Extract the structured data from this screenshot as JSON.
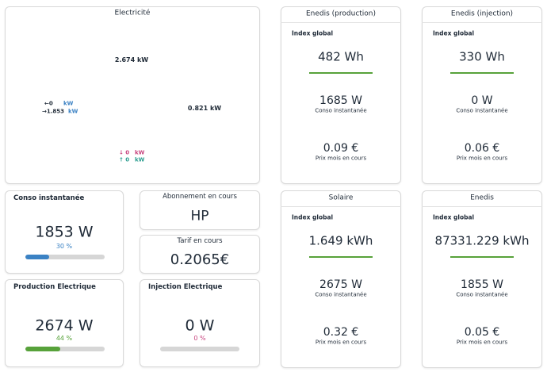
{
  "power_flow": {
    "title": "Electricité",
    "solar": "2.674 kW",
    "grid_in": "←0",
    "grid_in_unit": "kW",
    "grid_out": "→1.853",
    "grid_out_unit": "kW",
    "home": "0.821 kW",
    "battery_in": "↓ 0",
    "battery_in_unit": "kW",
    "battery_out": "↑ 0",
    "battery_out_unit": "kW"
  },
  "gauges": [
    {
      "title": "Conso instantanée",
      "value": "1853 W",
      "percent": 30,
      "percent_label": "30 %"
    },
    {
      "title": "Production Electrique",
      "value": "2674 W",
      "percent": 44,
      "percent_label": "44 %"
    },
    {
      "title": "Injection Electrique",
      "value": "0 W",
      "percent": 0,
      "percent_label": "0 %"
    }
  ],
  "tariff": {
    "subscription_title": "Abonnement en cours",
    "subscription": "HP",
    "rate_title": "Tarif en cours",
    "rate": "0.2065€"
  },
  "meters": [
    {
      "title": "Enedis (production)",
      "index_label": "Index global",
      "index": "482 Wh",
      "power": "1685 W",
      "power_label": "Conso instantanée",
      "cost": "0.09 €",
      "cost_label": "Prix mois en cours"
    },
    {
      "title": "Enedis (injection)",
      "index_label": "Index global",
      "index": "330 Wh",
      "power": "0 W",
      "power_label": "Conso instantanée",
      "cost": "0.06 €",
      "cost_label": "Prix mois en cours"
    },
    {
      "title": "Solaire",
      "index_label": "Index global",
      "index": "1.649 kWh",
      "power": "2675 W",
      "power_label": "Conso instantanée",
      "cost": "0.32 €",
      "cost_label": "Prix mois en cours"
    },
    {
      "title": "Enedis",
      "index_label": "Index global",
      "index": "87331.229 kWh",
      "power": "1855 W",
      "power_label": "Conso instantanée",
      "cost": "0.05 €",
      "cost_label": "Prix mois en cours"
    }
  ]
}
